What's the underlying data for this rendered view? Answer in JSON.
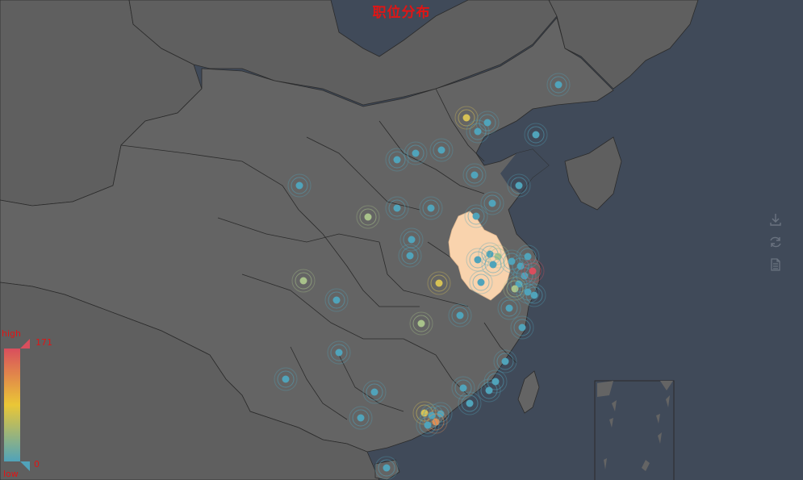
{
  "title": "职位分布",
  "toolbox": {
    "items": [
      {
        "icon": "download-icon"
      },
      {
        "icon": "refresh-icon"
      },
      {
        "icon": "data-view-icon"
      }
    ]
  },
  "visual_map": {
    "high_text": "high",
    "low_text": "low",
    "max_value": "171",
    "min_value": "0",
    "colors": [
      "#50a3ba",
      "#eac736",
      "#d94e5d"
    ],
    "text_color": "#e01515"
  },
  "map": {
    "background": "#404a59",
    "land_color": "#646464",
    "border_color": "#2a2a2a",
    "highlight_region": "安徽",
    "highlight_color": "#f9d3ad"
  }
}
